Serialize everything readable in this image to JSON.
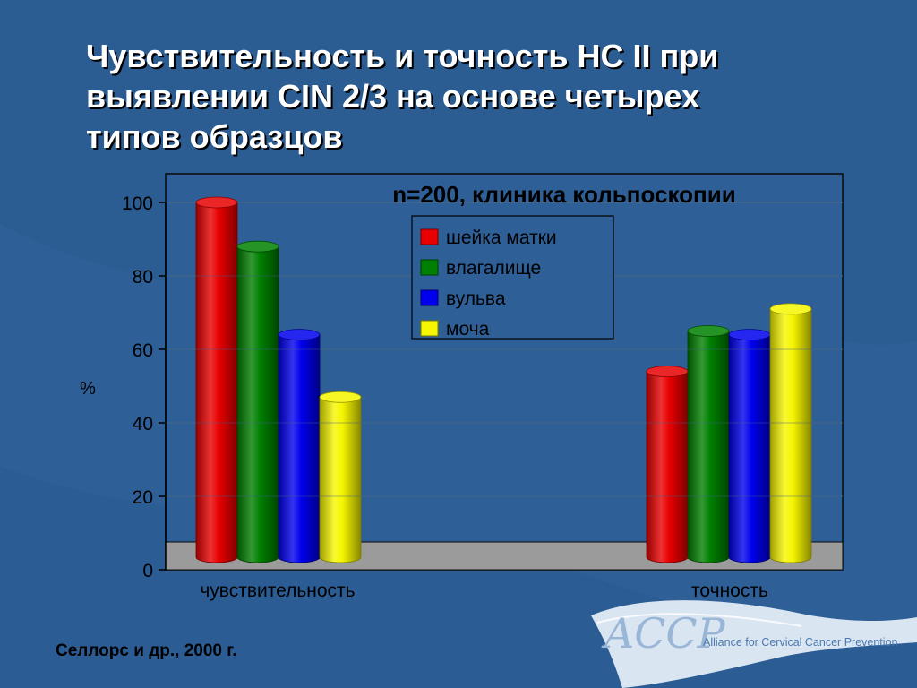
{
  "slide": {
    "title_lines": [
      "Чувствительность и точность HC II при",
      "выявлении CIN 2/3 на основе четырех",
      "типов образцов"
    ],
    "source": "Селлорс и др., 2000 г.",
    "logo": {
      "mark": "ACCP",
      "org": "Alliance for Cervical Cancer Prevention"
    }
  },
  "chart_data": {
    "type": "bar",
    "style": "3d-cylinder",
    "title": "n=200, клиника кольпоскопии",
    "ylabel": "%",
    "xlabel": "",
    "ylim": [
      0,
      100
    ],
    "yticks": [
      0,
      20,
      40,
      60,
      80,
      100
    ],
    "grid": true,
    "legend_position": "top-right",
    "categories": [
      "чувствительность",
      "точность"
    ],
    "series": [
      {
        "name": "шейка матки",
        "color": "#e80000",
        "values": [
          100,
          54
        ]
      },
      {
        "name": "влагалище",
        "color": "#008000",
        "values": [
          88,
          65
        ]
      },
      {
        "name": "вульва",
        "color": "#0000ee",
        "values": [
          64,
          64
        ]
      },
      {
        "name": "моча",
        "color": "#f6f600",
        "values": [
          47,
          71
        ]
      }
    ]
  }
}
